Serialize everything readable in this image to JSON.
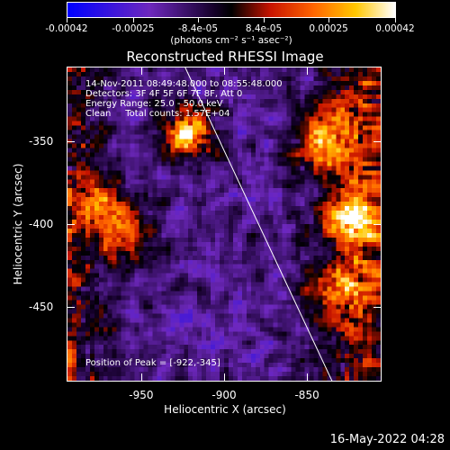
{
  "colorbar": {
    "tick_labels": [
      "-0.00042",
      "-0.00025",
      "-8.4e-05",
      "8.4e-05",
      "0.00025",
      "0.00042"
    ],
    "tick_values": [
      -0.00042,
      -0.00025,
      -8.4e-05,
      8.4e-05,
      0.00025,
      0.00042
    ],
    "unit": "(photons cm⁻² s⁻¹ asec⁻²)",
    "range": [
      -0.00042,
      0.00042
    ]
  },
  "title": "Reconstructed RHESSI Image",
  "info": {
    "time": "14-Nov-2011 08:49:48.000 to 08:55:48.000",
    "detectors": "Detectors: 3F 4F 5F 6F 7F 8F, Att 0",
    "energy": "Energy Range: 25.0 - 50.0 keV",
    "clean": "Clean     Total counts: 1.57E+04",
    "peak": "Position of Peak = [-922,-345]"
  },
  "chart_data": {
    "type": "heatmap",
    "title": "Reconstructed RHESSI Image",
    "xlabel": "Heliocentric X (arcsec)",
    "ylabel": "Heliocentric Y (arcsec)",
    "xlim": [
      -995,
      -805
    ],
    "ylim": [
      -495,
      -305
    ],
    "xticks": [
      -950,
      -900,
      -850
    ],
    "yticks": [
      -350,
      -400,
      -450
    ],
    "xtick_labels": [
      "-950",
      "-900",
      "-850"
    ],
    "ytick_labels": [
      "-350",
      "-400",
      "-450"
    ],
    "peak": [
      -922,
      -345
    ],
    "limb_line": [
      [
        -924,
        -305
      ],
      [
        -835,
        -495
      ]
    ],
    "colormap": "blue-purple-black-red-yellow-white",
    "bright_regions": [
      {
        "x": -922,
        "y": -345,
        "level": 1.0
      },
      {
        "x": -838,
        "y": -350,
        "level": 0.85
      },
      {
        "x": -820,
        "y": -395,
        "level": 0.7
      },
      {
        "x": -958,
        "y": -408,
        "level": 0.6
      },
      {
        "x": -830,
        "y": -440,
        "level": 0.6
      },
      {
        "x": -975,
        "y": -390,
        "level": 0.55
      }
    ]
  },
  "timestamp": "16-May-2022 04:28"
}
